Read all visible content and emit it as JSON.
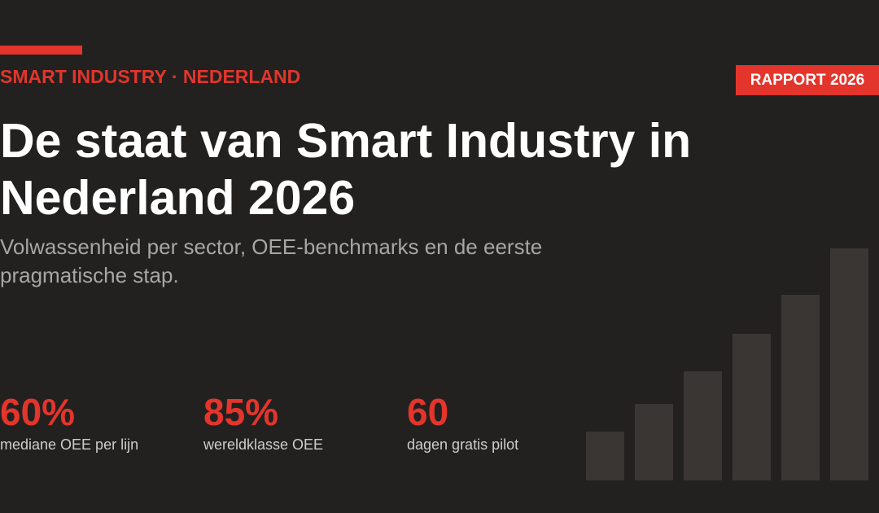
{
  "header": {
    "eyebrow": "SMART INDUSTRY · NEDERLAND",
    "badge": "RAPPORT 2026"
  },
  "hero": {
    "title": "De staat van Smart Industry in Nederland 2026",
    "subtitle": "Volwassenheid per sector, OEE-benchmarks en de eerste pragmatische stap."
  },
  "stats": [
    {
      "value": "60%",
      "label": "mediane OEE per lijn"
    },
    {
      "value": "85%",
      "label": "wereldklasse OEE"
    },
    {
      "value": "60",
      "label": "dagen gratis pilot"
    }
  ],
  "decorative_bars": {
    "relative_heights": [
      0.21,
      0.33,
      0.47,
      0.63,
      0.8,
      1.0
    ],
    "color": "#3a3634"
  },
  "colors": {
    "background": "#222120",
    "accent": "#e3352b",
    "title": "#ffffff",
    "subtitle": "#a8a6a3"
  }
}
